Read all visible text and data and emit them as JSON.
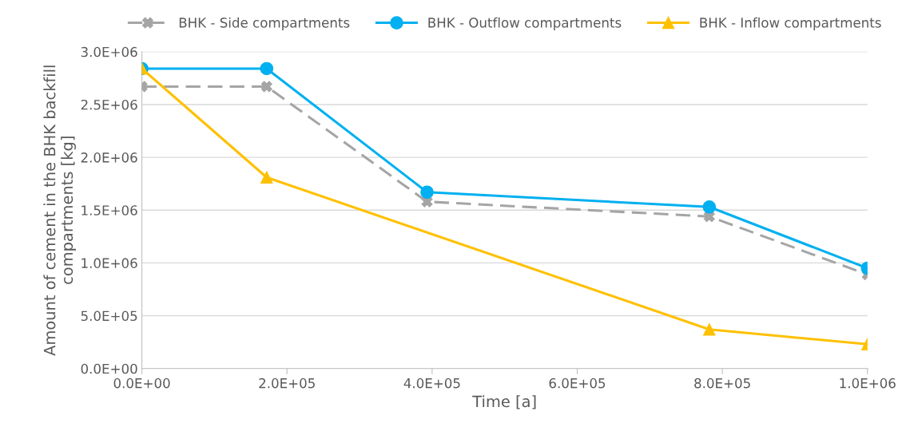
{
  "chart_data": {
    "type": "line",
    "xlabel": "Time [a]",
    "ylabel": "Amount of cement in the BHK backfill\ncompartments [kg]",
    "xlim": [
      0,
      1000000
    ],
    "ylim": [
      0,
      3000000
    ],
    "xticks": [
      {
        "value": 0,
        "label": "0.0E+00"
      },
      {
        "value": 200000,
        "label": "2.0E+05"
      },
      {
        "value": 400000,
        "label": "4.0E+05"
      },
      {
        "value": 600000,
        "label": "6.0E+05"
      },
      {
        "value": 800000,
        "label": "8.0E+05"
      },
      {
        "value": 1000000,
        "label": "1.0E+06"
      }
    ],
    "yticks": [
      {
        "value": 0,
        "label": "0.0E+00"
      },
      {
        "value": 500000,
        "label": "5.0E+05"
      },
      {
        "value": 1000000,
        "label": "1.0E+06"
      },
      {
        "value": 1500000,
        "label": "1.5E+06"
      },
      {
        "value": 2000000,
        "label": "2.0E+06"
      },
      {
        "value": 2500000,
        "label": "2.5E+06"
      },
      {
        "value": 3000000,
        "label": "3.0E+06"
      }
    ],
    "grid": "y",
    "legend": "top",
    "series": [
      {
        "name": "BHK - Side compartments",
        "color": "#a5a5a5",
        "marker": "cross",
        "line_style": "dashed",
        "x": [
          0,
          172000,
          393000,
          782000,
          1000000
        ],
        "values": [
          2670000,
          2670000,
          1580000,
          1440000,
          890000
        ]
      },
      {
        "name": "BHK - Outflow compartments",
        "color": "#00b0f0",
        "marker": "circle",
        "line_style": "solid",
        "x": [
          0,
          172000,
          393000,
          782000,
          1000000
        ],
        "values": [
          2840000,
          2840000,
          1670000,
          1530000,
          950000
        ]
      },
      {
        "name": "BHK - Inflow compartments",
        "color": "#ffc000",
        "marker": "triangle",
        "line_style": "solid",
        "x": [
          0,
          172000,
          782000,
          1000000
        ],
        "values": [
          2840000,
          1810000,
          370000,
          230000
        ]
      }
    ]
  }
}
